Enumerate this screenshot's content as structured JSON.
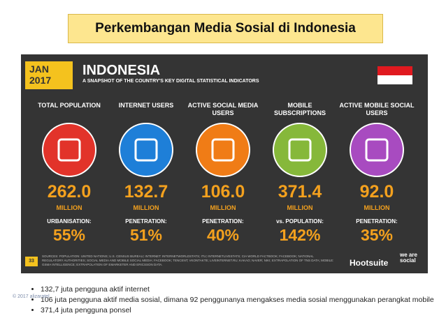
{
  "header": {
    "title": "Perkembangan Media Sosial di Indonesia"
  },
  "infographic": {
    "date_month": "JAN",
    "date_year": "2017",
    "country": "INDONESIA",
    "subtitle": "A SNAPSHOT OF THE COUNTRY'S KEY DIGITAL STATISTICAL INDICATORS",
    "columns": [
      {
        "label": "TOTAL POPULATION",
        "value": "262.0",
        "unit": "MILLION",
        "sub_label": "URBANISATION:",
        "percent": "55%"
      },
      {
        "label": "INTERNET USERS",
        "value": "132.7",
        "unit": "MILLION",
        "sub_label": "PENETRATION:",
        "percent": "51%"
      },
      {
        "label": "ACTIVE SOCIAL MEDIA USERS",
        "value": "106.0",
        "unit": "MILLION",
        "sub_label": "PENETRATION:",
        "percent": "40%"
      },
      {
        "label": "MOBILE SUBSCRIPTIONS",
        "value": "371.4",
        "unit": "MILLION",
        "sub_label": "vs. POPULATION:",
        "percent": "142%"
      },
      {
        "label": "ACTIVE MOBILE SOCIAL USERS",
        "value": "92.0",
        "unit": "MILLION",
        "sub_label": "PENETRATION:",
        "percent": "35%"
      }
    ],
    "sources": "SOURCES: POPULATION: UNITED NATIONS; U.S. CENSUS BUREAU; INTERNET: INTERNETWORLDSTATS; ITU; INTERNETLIVESTATS; CIA WORLD FACTBOOK; FACEBOOK; NATIONAL REGULATORY AUTHORITIES; SOCIAL MEDIA AND MOBILE SOCIAL MEDIA: FACEBOOK; TENCENT; VKONTAKTE; LIVEINTERNET.RU; KAKAO; NAVER; NIKI; EXTRAPOLATION OF TNS DATA; MOBILE: GSMA INTELLIGENCE; EXTRAPOLATION OF EMARKETER AND ERICSSON DATA.",
    "page": "33",
    "brand": "Hootsuite",
    "partner": "we are social"
  },
  "bullets": [
    "132,7 juta pengguna aktif internet",
    "106 juta pengguna aktif media sosial, dimana 92 penggunanya mengakses media sosial menggunakan perangkat mobile",
    "371,4 juta pengguna ponsel"
  ],
  "footer": {
    "copyright": "© 2017 alizaratel"
  }
}
